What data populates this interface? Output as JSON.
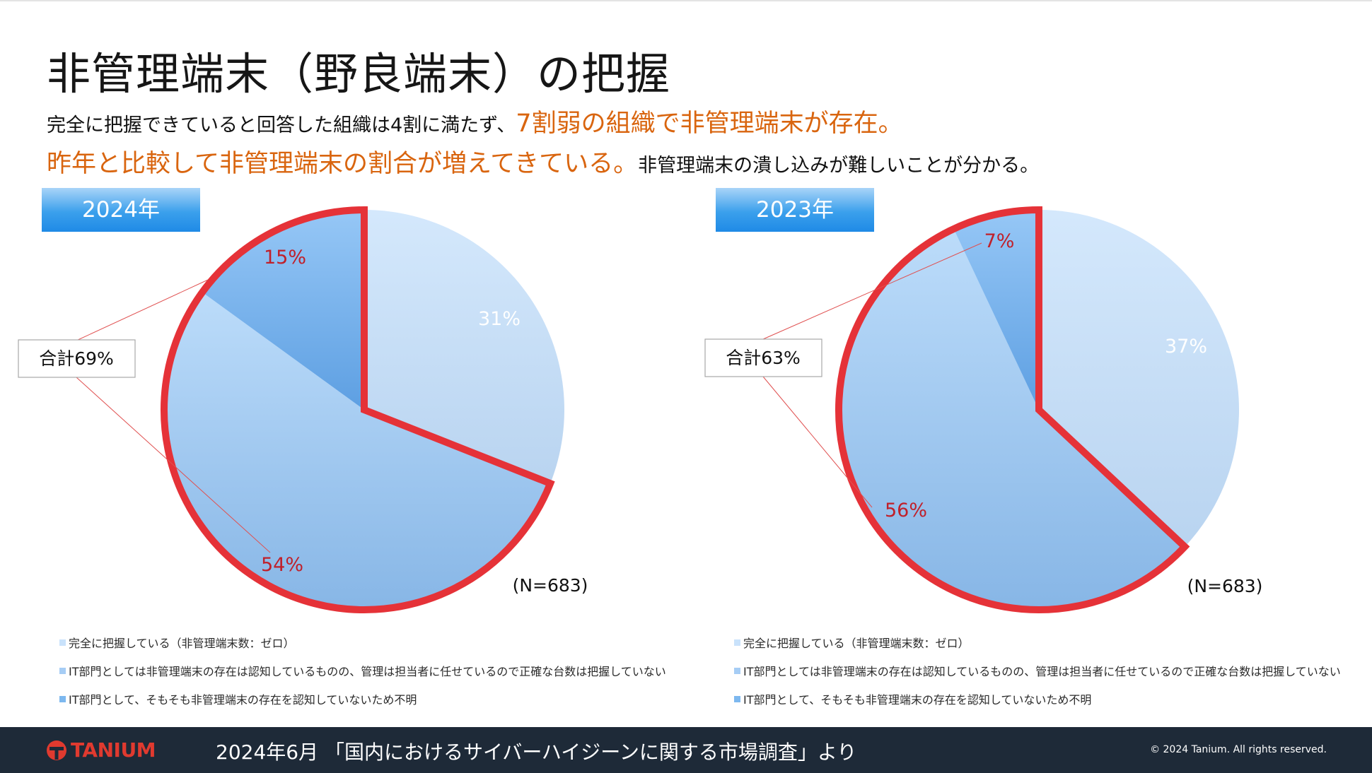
{
  "page": {
    "title": "非管理端末（野良端末）の把握",
    "subtitle_line1_normal": "完全に把握できていると回答した組織は4割に満たず、",
    "subtitle_line1_highlight": "7割弱の組織で非管理端末が存在。",
    "subtitle_line2_highlight": "昨年と比較して非管理端末の割合が増えてきている。",
    "subtitle_line2_normal": "非管理端末の潰し込みが難しいことが分かる。",
    "highlight_color": "#d9650f"
  },
  "chart_data": [
    {
      "type": "pie",
      "title": "2024年",
      "categories": [
        "完全に把握している（非管理端末数：ゼロ）",
        "IT部門としては非管理端末の存在は認知しているものの、管理は担当者に任せているので正確な台数は把握していない",
        "IT部門として、そもそも非管理端末の存在を認知していないため不明"
      ],
      "values": [
        31,
        54,
        15
      ],
      "labels": [
        "31%",
        "54%",
        "15%"
      ],
      "total_label": "合計69%",
      "n_label": "(N=683)",
      "colors": [
        "#c9e2fb",
        "#a6cdf5",
        "#7db8ef"
      ],
      "highlight_stroke": "#e53238"
    },
    {
      "type": "pie",
      "title": "2023年",
      "categories": [
        "完全に把握している（非管理端末数：ゼロ）",
        "IT部門としては非管理端末の存在は認知しているものの、管理は担当者に任せているので正確な台数は把握していない",
        "IT部門として、そもそも非管理端末の存在を認知していないため不明"
      ],
      "values": [
        37,
        56,
        7
      ],
      "labels": [
        "37%",
        "56%",
        "7%"
      ],
      "total_label": "合計63%",
      "n_label": "(N=683)",
      "colors": [
        "#c9e2fb",
        "#a6cdf5",
        "#7db8ef"
      ],
      "highlight_stroke": "#e53238"
    }
  ],
  "footer": {
    "logo_text": "TANIUM",
    "source": "2024年6月 「国内におけるサイバーハイジーンに関する市場調査」より",
    "copyright": "© 2024 Tanium. All rights reserved."
  }
}
